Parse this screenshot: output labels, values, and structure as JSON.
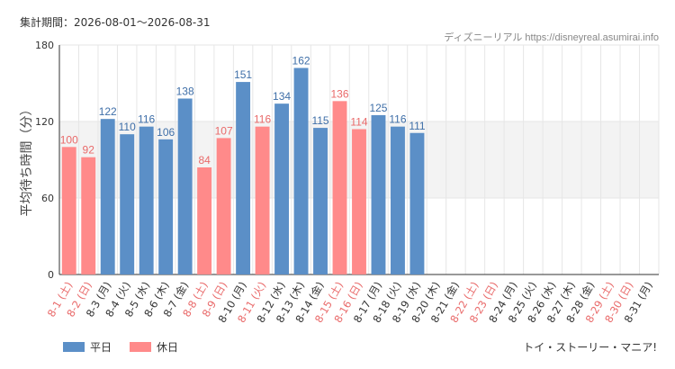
{
  "header": {
    "period_text": "集計期間：2026-08-01〜2026-08-31",
    "credit_text": "ディズニーリアル https://disneyreal.asumirai.info"
  },
  "footer": {
    "attraction_name": "トイ・ストーリー・マニア!"
  },
  "colors": {
    "weekday": "#5b8fc7",
    "holiday": "#ff8a8a",
    "weekday_label": "#3f6fa8",
    "holiday_label": "#e96a6a",
    "band": "#f3f3f3",
    "grid": "#e6e6e6",
    "axis": "#333333"
  },
  "chart_data": {
    "type": "bar",
    "title": "",
    "xlabel": "",
    "ylabel": "平均待ち時間（分）",
    "ylim": [
      0,
      180
    ],
    "yticks": [
      "0",
      "60",
      "120",
      "180"
    ],
    "highlight_band": [
      60,
      120
    ],
    "grid": true,
    "legend_position": "bottom-left",
    "legend": [
      {
        "name": "平日",
        "kind": "weekday"
      },
      {
        "name": "休日",
        "kind": "holiday"
      }
    ],
    "categories": [
      "8-1 (土)",
      "8-2 (日)",
      "8-3 (月)",
      "8-4 (火)",
      "8-5 (水)",
      "8-6 (木)",
      "8-7 (金)",
      "8-8 (土)",
      "8-9 (日)",
      "8-10 (月)",
      "8-11 (火)",
      "8-12 (水)",
      "8-13 (木)",
      "8-14 (金)",
      "8-15 (土)",
      "8-16 (日)",
      "8-17 (月)",
      "8-18 (火)",
      "8-19 (水)",
      "8-20 (木)",
      "8-21 (金)",
      "8-22 (土)",
      "8-23 (日)",
      "8-24 (月)",
      "8-25 (火)",
      "8-26 (水)",
      "8-27 (木)",
      "8-28 (金)",
      "8-29 (土)",
      "8-30 (日)",
      "8-31 (月)"
    ],
    "day_types": [
      "holiday",
      "holiday",
      "weekday",
      "weekday",
      "weekday",
      "weekday",
      "weekday",
      "holiday",
      "holiday",
      "weekday",
      "holiday",
      "weekday",
      "weekday",
      "weekday",
      "holiday",
      "holiday",
      "weekday",
      "weekday",
      "weekday",
      "weekday",
      "weekday",
      "holiday",
      "holiday",
      "weekday",
      "weekday",
      "weekday",
      "weekday",
      "weekday",
      "holiday",
      "holiday",
      "weekday"
    ],
    "values": [
      100,
      92,
      122,
      110,
      116,
      106,
      138,
      84,
      107,
      151,
      116,
      134,
      162,
      115,
      136,
      114,
      125,
      116,
      111,
      null,
      null,
      null,
      null,
      null,
      null,
      null,
      null,
      null,
      null,
      null,
      null
    ]
  }
}
